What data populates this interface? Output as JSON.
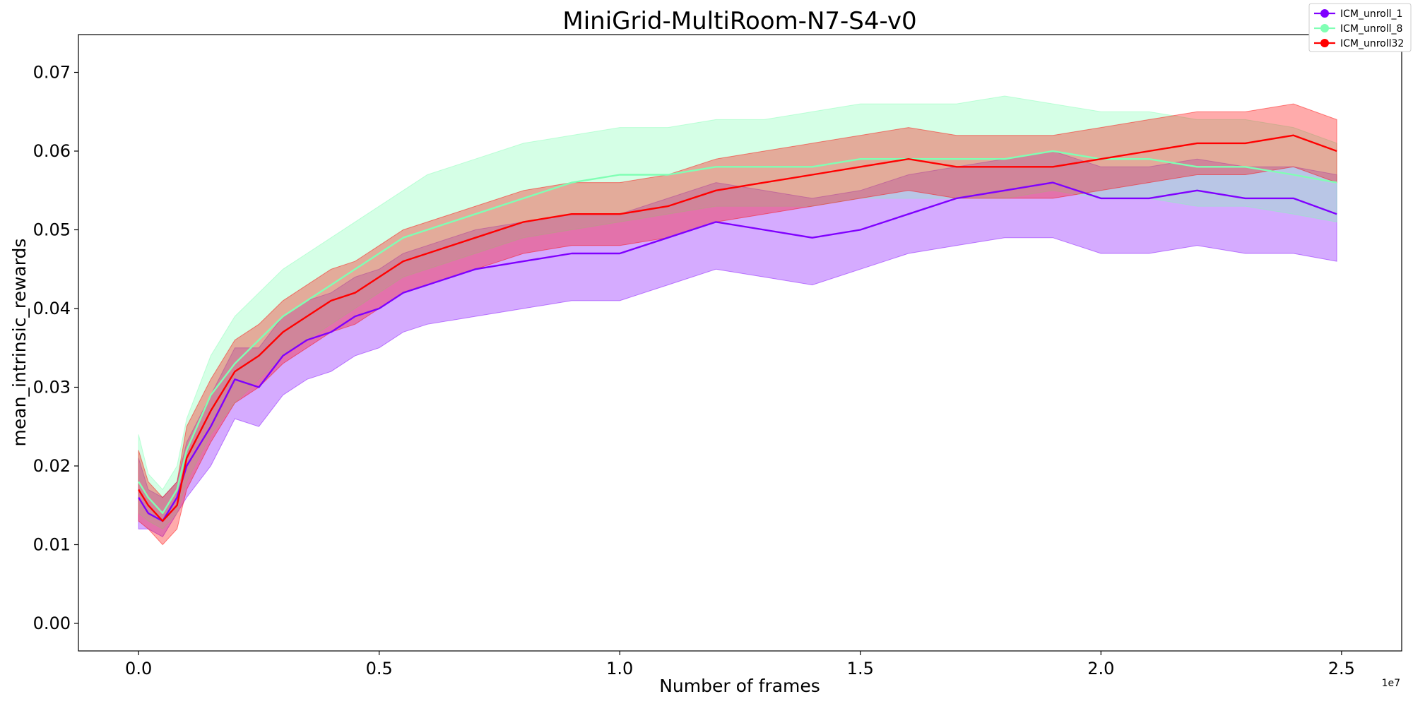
{
  "chart_data": {
    "type": "line",
    "title": "MiniGrid-MultiRoom-N7-S4-v0",
    "xlabel": "Number of frames",
    "ylabel": "mean_intrinsic_rewards",
    "x_offset_label": "1e7",
    "xlim": [
      -0.125,
      2.625
    ],
    "ylim": [
      -0.0035,
      0.0748
    ],
    "x_ticks": [
      0.0,
      0.5,
      1.0,
      1.5,
      2.0,
      2.5
    ],
    "x_tick_labels": [
      "0.0",
      "0.5",
      "1.0",
      "1.5",
      "2.0",
      "2.5"
    ],
    "y_ticks": [
      0.0,
      0.01,
      0.02,
      0.03,
      0.04,
      0.05,
      0.06,
      0.07
    ],
    "y_tick_labels": [
      "0.00",
      "0.01",
      "0.02",
      "0.03",
      "0.04",
      "0.05",
      "0.06",
      "0.07"
    ],
    "grid": false,
    "legend_position": "top-right",
    "series": [
      {
        "name": "ICM_unroll_1",
        "color": "#7f00ff",
        "x": [
          0.0,
          0.02,
          0.05,
          0.08,
          0.1,
          0.15,
          0.2,
          0.25,
          0.3,
          0.35,
          0.4,
          0.45,
          0.5,
          0.55,
          0.6,
          0.7,
          0.8,
          0.9,
          1.0,
          1.1,
          1.2,
          1.3,
          1.4,
          1.5,
          1.6,
          1.7,
          1.8,
          1.9,
          2.0,
          2.1,
          2.2,
          2.3,
          2.4,
          2.49
        ],
        "mean": [
          0.016,
          0.014,
          0.013,
          0.016,
          0.02,
          0.025,
          0.031,
          0.03,
          0.034,
          0.036,
          0.037,
          0.039,
          0.04,
          0.042,
          0.043,
          0.045,
          0.046,
          0.047,
          0.047,
          0.049,
          0.051,
          0.05,
          0.049,
          0.05,
          0.052,
          0.054,
          0.055,
          0.056,
          0.054,
          0.054,
          0.055,
          0.054,
          0.054,
          0.052
        ],
        "lower": [
          0.012,
          0.012,
          0.011,
          0.014,
          0.016,
          0.02,
          0.026,
          0.025,
          0.029,
          0.031,
          0.032,
          0.034,
          0.035,
          0.037,
          0.038,
          0.039,
          0.04,
          0.041,
          0.041,
          0.043,
          0.045,
          0.044,
          0.043,
          0.045,
          0.047,
          0.048,
          0.049,
          0.049,
          0.047,
          0.047,
          0.048,
          0.047,
          0.047,
          0.046
        ],
        "upper": [
          0.021,
          0.017,
          0.016,
          0.018,
          0.023,
          0.029,
          0.035,
          0.035,
          0.039,
          0.041,
          0.042,
          0.044,
          0.045,
          0.047,
          0.048,
          0.05,
          0.051,
          0.052,
          0.052,
          0.054,
          0.056,
          0.055,
          0.054,
          0.055,
          0.057,
          0.058,
          0.059,
          0.06,
          0.058,
          0.058,
          0.059,
          0.058,
          0.058,
          0.057
        ]
      },
      {
        "name": "ICM_unroll_8",
        "color": "#80ffb4",
        "x": [
          0.0,
          0.02,
          0.05,
          0.08,
          0.1,
          0.15,
          0.2,
          0.25,
          0.3,
          0.35,
          0.4,
          0.45,
          0.5,
          0.55,
          0.6,
          0.7,
          0.8,
          0.9,
          1.0,
          1.1,
          1.2,
          1.3,
          1.4,
          1.5,
          1.6,
          1.7,
          1.8,
          1.9,
          2.0,
          2.1,
          2.2,
          2.3,
          2.4,
          2.49
        ],
        "mean": [
          0.018,
          0.016,
          0.014,
          0.017,
          0.022,
          0.029,
          0.033,
          0.036,
          0.039,
          0.041,
          0.043,
          0.045,
          0.047,
          0.049,
          0.05,
          0.052,
          0.054,
          0.056,
          0.057,
          0.057,
          0.058,
          0.058,
          0.058,
          0.059,
          0.059,
          0.059,
          0.059,
          0.06,
          0.059,
          0.059,
          0.058,
          0.058,
          0.057,
          0.056
        ],
        "lower": [
          0.014,
          0.013,
          0.012,
          0.014,
          0.018,
          0.024,
          0.028,
          0.031,
          0.034,
          0.036,
          0.038,
          0.04,
          0.042,
          0.044,
          0.045,
          0.047,
          0.049,
          0.05,
          0.051,
          0.052,
          0.053,
          0.053,
          0.053,
          0.054,
          0.054,
          0.054,
          0.054,
          0.055,
          0.054,
          0.054,
          0.053,
          0.053,
          0.052,
          0.051
        ],
        "upper": [
          0.024,
          0.019,
          0.017,
          0.02,
          0.026,
          0.034,
          0.039,
          0.042,
          0.045,
          0.047,
          0.049,
          0.051,
          0.053,
          0.055,
          0.057,
          0.059,
          0.061,
          0.062,
          0.063,
          0.063,
          0.064,
          0.064,
          0.065,
          0.066,
          0.066,
          0.066,
          0.067,
          0.066,
          0.065,
          0.065,
          0.064,
          0.064,
          0.063,
          0.061
        ]
      },
      {
        "name": "ICM_unroll32",
        "color": "#ff0000",
        "x": [
          0.0,
          0.02,
          0.05,
          0.08,
          0.1,
          0.15,
          0.2,
          0.25,
          0.3,
          0.35,
          0.4,
          0.45,
          0.5,
          0.55,
          0.6,
          0.7,
          0.8,
          0.9,
          1.0,
          1.1,
          1.2,
          1.3,
          1.4,
          1.5,
          1.6,
          1.7,
          1.8,
          1.9,
          2.0,
          2.1,
          2.2,
          2.3,
          2.4,
          2.49
        ],
        "mean": [
          0.017,
          0.015,
          0.013,
          0.015,
          0.021,
          0.027,
          0.032,
          0.034,
          0.037,
          0.039,
          0.041,
          0.042,
          0.044,
          0.046,
          0.047,
          0.049,
          0.051,
          0.052,
          0.052,
          0.053,
          0.055,
          0.056,
          0.057,
          0.058,
          0.059,
          0.058,
          0.058,
          0.058,
          0.059,
          0.06,
          0.061,
          0.061,
          0.062,
          0.06
        ],
        "lower": [
          0.013,
          0.012,
          0.01,
          0.012,
          0.017,
          0.023,
          0.028,
          0.03,
          0.033,
          0.035,
          0.037,
          0.038,
          0.04,
          0.042,
          0.043,
          0.045,
          0.047,
          0.048,
          0.048,
          0.049,
          0.051,
          0.052,
          0.053,
          0.054,
          0.055,
          0.054,
          0.054,
          0.054,
          0.055,
          0.056,
          0.057,
          0.057,
          0.058,
          0.056
        ],
        "upper": [
          0.022,
          0.018,
          0.016,
          0.018,
          0.025,
          0.031,
          0.036,
          0.038,
          0.041,
          0.043,
          0.045,
          0.046,
          0.048,
          0.05,
          0.051,
          0.053,
          0.055,
          0.056,
          0.056,
          0.057,
          0.059,
          0.06,
          0.061,
          0.062,
          0.063,
          0.062,
          0.062,
          0.062,
          0.063,
          0.064,
          0.065,
          0.065,
          0.066,
          0.064
        ]
      }
    ]
  }
}
